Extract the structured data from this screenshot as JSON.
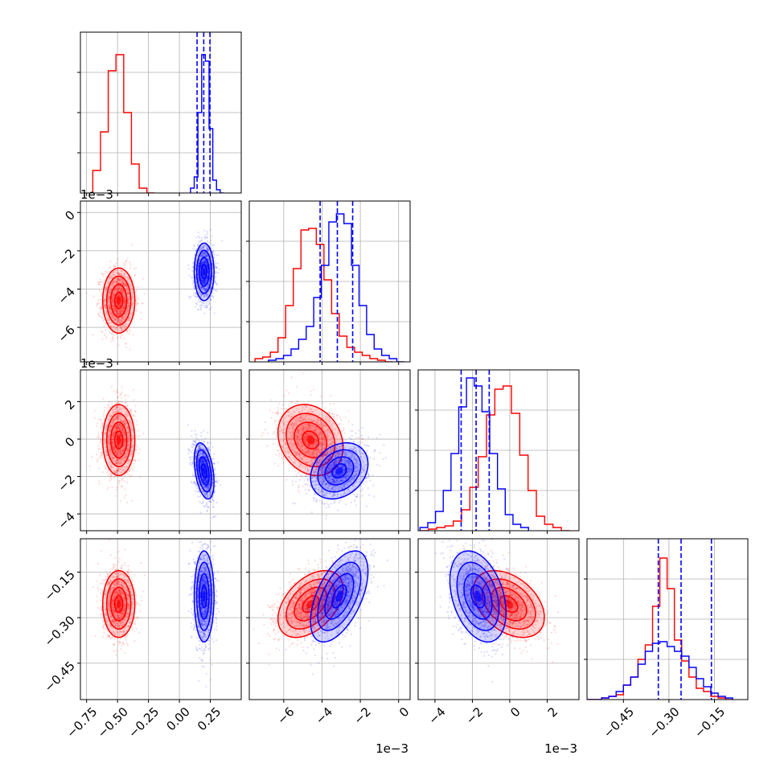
{
  "chart_data": {
    "type": "corner",
    "parameters": 4,
    "grid": true,
    "series": [
      {
        "color": "#ff0000",
        "mean": [
          -0.49,
          -0.0046,
          -5e-05,
          -0.255
        ],
        "std": [
          0.065,
          0.00085,
          0.00095,
          0.055
        ],
        "corr": [
          [
            1,
            0,
            0,
            0
          ],
          [
            0,
            1,
            -0.2,
            0.45
          ],
          [
            0,
            -0.2,
            1,
            -0.4
          ],
          [
            0,
            0.45,
            -0.4,
            1
          ]
        ],
        "hist": [
          {
            "edges": [
              -0.7,
              -0.2
            ],
            "heights": [
              0.14,
              0.38,
              0.76,
              0.86,
              0.5,
              0.18,
              0.03,
              0
            ]
          },
          {
            "edges": [
              -0.0075,
              -0.0003
            ],
            "heights": [
              0.02,
              0.03,
              0.06,
              0.15,
              0.35,
              0.58,
              0.82,
              0.83,
              0.73,
              0.51,
              0.3,
              0.16,
              0.09,
              0.06,
              0.04,
              0.02,
              0.01,
              0
            ]
          },
          {
            "edges": [
              -0.0048,
              0.0032
            ],
            "heights": [
              0,
              0.01,
              0.02,
              0.03,
              0.06,
              0.13,
              0.27,
              0.46,
              0.72,
              0.88,
              0.9,
              0.73,
              0.47,
              0.25,
              0.09,
              0.04,
              0.02,
              0
            ]
          },
          {
            "edges": [
              -0.57,
              -0.09
            ],
            "heights": [
              0,
              0,
              0.01,
              0.02,
              0.03,
              0.09,
              0.14,
              0.25,
              0.34,
              0.58,
              0.88,
              0.69,
              0.37,
              0.24,
              0.14,
              0.07,
              0.05,
              0.02,
              0.01,
              0
            ]
          }
        ]
      },
      {
        "color": "#0000ff",
        "mean": [
          0.2,
          -0.0031,
          -0.0017,
          -0.23
        ],
        "std": [
          0.04,
          0.00075,
          0.00075,
          0.075
        ],
        "corr": [
          [
            1,
            0,
            -0.4,
            0
          ],
          [
            0,
            1,
            0.25,
            0.55
          ],
          [
            -0.4,
            0.25,
            1,
            -0.35
          ],
          [
            0,
            0.55,
            -0.35,
            1
          ]
        ],
        "hist": [
          {
            "edges": [
              0.09,
              0.36
            ],
            "heights": [
              0.03,
              0.1,
              0.5,
              0.86,
              0.82,
              0.4,
              0.08,
              0.02,
              0
            ]
          },
          {
            "edges": [
              -0.0068,
              0.0003
            ],
            "heights": [
              0.01,
              0.02,
              0.04,
              0.08,
              0.14,
              0.22,
              0.4,
              0.6,
              0.87,
              0.92,
              0.86,
              0.6,
              0.35,
              0.17,
              0.08,
              0.04,
              0.02,
              0
            ]
          },
          {
            "edges": [
              -0.0048,
              0.001
            ],
            "heights": [
              0.02,
              0.05,
              0.12,
              0.25,
              0.48,
              0.77,
              0.95,
              0.9,
              0.74,
              0.48,
              0.26,
              0.1,
              0.04,
              0.02
            ]
          },
          {
            "edges": [
              -0.57,
              -0.09
            ],
            "heights": [
              0,
              0,
              0.01,
              0.02,
              0.05,
              0.09,
              0.14,
              0.22,
              0.3,
              0.35,
              0.36,
              0.33,
              0.3,
              0.27,
              0.2,
              0.13,
              0.08,
              0.04,
              0.02,
              0.01
            ]
          }
        ]
      }
    ],
    "quantiles": [
      [
        0.143,
        0.197,
        0.247
      ],
      [
        -0.0041,
        -0.0032,
        -0.0024
      ],
      [
        -0.0026,
        -0.0018,
        -0.0011
      ],
      [
        -0.335,
        -0.26,
        -0.16
      ]
    ],
    "axes": [
      {
        "lim": [
          -0.8,
          0.5
        ],
        "ticks": [
          -0.75,
          -0.5,
          -0.25,
          0.0,
          0.25
        ],
        "tick_labels": [
          "−0.75",
          "−0.50",
          "−0.25",
          "0.00",
          "0.25"
        ],
        "offset": ""
      },
      {
        "lim": [
          -0.0078,
          0.0006
        ],
        "ticks": [
          -0.006,
          -0.004,
          -0.002,
          0.0
        ],
        "tick_labels": [
          "−6",
          "−4",
          "−2",
          "0"
        ],
        "offset": "1e−3"
      },
      {
        "lim": [
          -0.0049,
          0.0037
        ],
        "ticks": [
          -0.004,
          -0.002,
          0.0,
          0.002
        ],
        "tick_labels": [
          "−4",
          "−2",
          "0",
          "2"
        ],
        "offset": "1e−3"
      },
      {
        "lim": [
          -0.57,
          -0.04
        ],
        "ticks": [
          -0.45,
          -0.3,
          -0.15
        ],
        "tick_labels": [
          "−0.45",
          "−0.30",
          "−0.15"
        ],
        "offset": ""
      }
    ],
    "contour_levels": [
      0.118,
      0.393,
      0.675,
      0.865
    ]
  }
}
